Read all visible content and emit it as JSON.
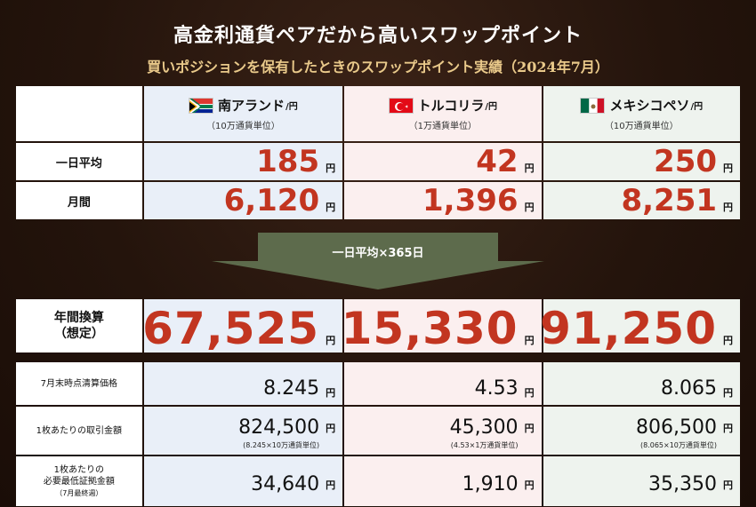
{
  "title": "高金利通貨ペアだから高いスワップポイント",
  "subtitle": "買いポジションを保有したときのスワップポイント実績（2024年7月）",
  "currencies": [
    {
      "name": "南アランド",
      "unit": "/円",
      "lot": "（10万通貨単位）",
      "flag": "south-africa-flag-icon"
    },
    {
      "name": "トルコリラ",
      "unit": "/円",
      "lot": "（1万通貨単位）",
      "flag": "turkey-flag-icon"
    },
    {
      "name": "メキシコペソ",
      "unit": "/円",
      "lot": "（10万通貨単位）",
      "flag": "mexico-flag-icon"
    }
  ],
  "yen": "円",
  "daily": {
    "label": "一日平均",
    "values": [
      "185",
      "42",
      "250"
    ]
  },
  "monthly": {
    "label": "月間",
    "values": [
      "6,120",
      "1,396",
      "8,251"
    ]
  },
  "arrow_label": "一日平均×365日",
  "annual": {
    "label_line1": "年間換算",
    "label_line2": "（想定）",
    "values": [
      "67,525",
      "15,330",
      "91,250"
    ]
  },
  "price": {
    "label": "7月末時点清算価格",
    "values": [
      "8.245",
      "4.53",
      "8.065"
    ]
  },
  "trade": {
    "label": "1枚あたりの取引金額",
    "values": [
      "824,500",
      "45,300",
      "806,500"
    ],
    "notes": [
      "(8.245×10万通貨単位)",
      "(4.53×1万通貨単位)",
      "(8.065×10万通貨単位)"
    ]
  },
  "margin": {
    "label_line1": "1枚あたりの",
    "label_line2": "必要最低証拠金額",
    "label_line3": "（7月最終週）",
    "values": [
      "34,640",
      "1,910",
      "35,350"
    ]
  },
  "colors": {
    "accent_red": "#c23520",
    "arrow": "#5d6b4c",
    "gold": "#e9c98a"
  }
}
